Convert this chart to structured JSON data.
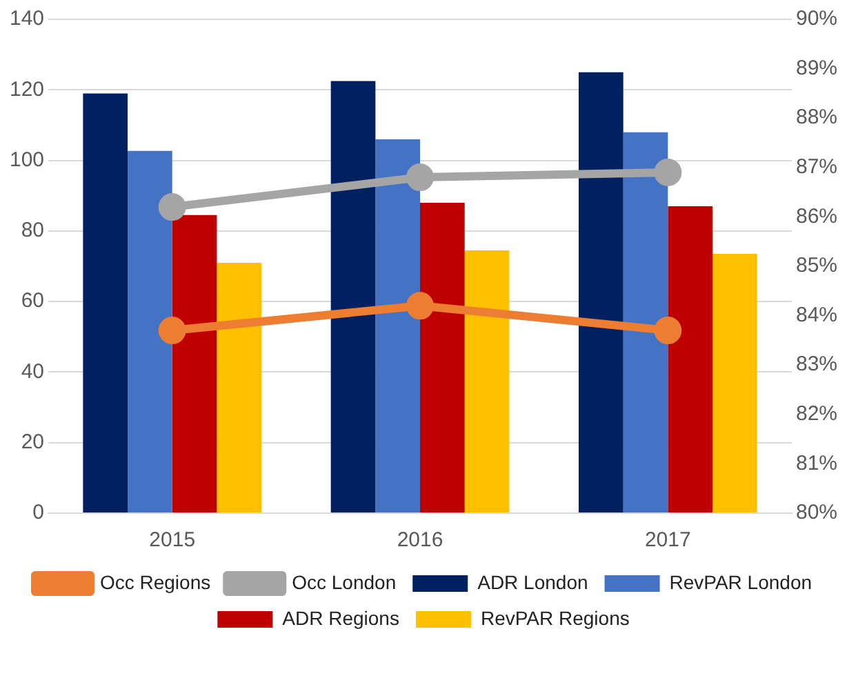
{
  "chart_data": {
    "type": "bar",
    "categories": [
      "2015",
      "2016",
      "2017"
    ],
    "series": [
      {
        "name": "ADR London",
        "color": "#002060",
        "values": [
          119,
          122.5,
          125
        ]
      },
      {
        "name": "RevPAR London",
        "color": "#4472c4",
        "values": [
          102.7,
          106,
          108
        ]
      },
      {
        "name": "ADR Regions",
        "color": "#c00000",
        "values": [
          84.5,
          88,
          87
        ]
      },
      {
        "name": "RevPAR Regions",
        "color": "#ffc000",
        "values": [
          71,
          74.5,
          73.5
        ]
      },
      {
        "name": "Occ Regions",
        "type": "line",
        "axis": "y2",
        "color": "#ed7d31",
        "values": [
          83.7,
          84.2,
          83.7
        ]
      },
      {
        "name": "Occ London",
        "type": "line",
        "axis": "y2",
        "color": "#a5a5a5",
        "values": [
          86.2,
          86.8,
          86.9
        ]
      }
    ],
    "ylim": [
      0,
      140
    ],
    "yticks": [
      0,
      20,
      40,
      60,
      80,
      100,
      120,
      140
    ],
    "y2lim": [
      80,
      90
    ],
    "y2ticks": [
      {
        "value": 80,
        "label": "80%"
      },
      {
        "value": 81,
        "label": "81%"
      },
      {
        "value": 82,
        "label": "82%"
      },
      {
        "value": 83,
        "label": "83%"
      },
      {
        "value": 84,
        "label": "84%"
      },
      {
        "value": 85,
        "label": "85%"
      },
      {
        "value": 86,
        "label": "86%"
      },
      {
        "value": 87,
        "label": "87%"
      },
      {
        "value": 88,
        "label": "88%"
      },
      {
        "value": 89,
        "label": "89%"
      },
      {
        "value": 90,
        "label": "90%"
      }
    ],
    "grid": "y",
    "legend": "bottom",
    "marker": "circle"
  }
}
